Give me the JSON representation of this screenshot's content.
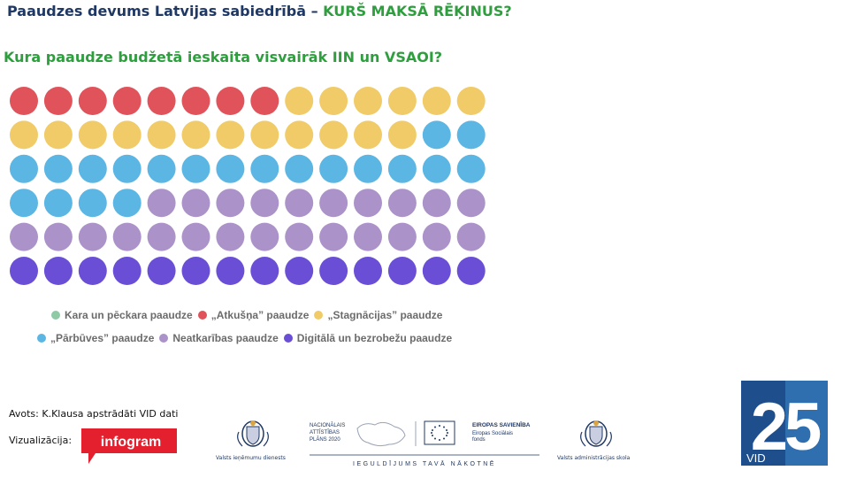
{
  "header": {
    "title_main": "Paaudzes devums Latvijas sabiedrībā – ",
    "title_highlight": "KURŠ MAKSĀ RĒĶINUS?",
    "subtitle": "Kura paaudze budžetā ieskaita visvairāk IIN un VSAOI?"
  },
  "chart_data": {
    "type": "waffle",
    "columns": 14,
    "rows": 6,
    "legend_placement": "bottom",
    "series": [
      {
        "name": "Kara un pēckara paaudze",
        "count": 0,
        "color": "#8fc9a5"
      },
      {
        "name": "„Atkušņa” paaudze",
        "count": 8,
        "color": "#e0535a"
      },
      {
        "name": "„Stagnācijas” paaudze",
        "count": 18,
        "color": "#f0cb67"
      },
      {
        "name": "„Pārbūves” paaudze",
        "count": 20,
        "color": "#5cb6e4"
      },
      {
        "name": "Neatkarības paaudze",
        "count": 24,
        "color": "#ab93c9"
      },
      {
        "name": "Digitālā un bezrobežu paaudze",
        "count": 14,
        "color": "#6a4fd6"
      }
    ]
  },
  "footer": {
    "source": "Avots: K.Klausa apstrādāti VID dati",
    "viz_label": "Vizualizācija:",
    "infogram": "infogram",
    "vid_logo_caption": "Valsts ieņēmumu dienests",
    "nap_line1": "NACIONĀLAIS",
    "nap_line2": "ATTĪSTĪBAS",
    "nap_line3": "PLĀNS 2020",
    "eu_title": "EIROPAS SAVIENĪBA",
    "eu_fund_line1": "Eiropas Sociālais",
    "eu_fund_line2": "fonds",
    "nap_slogan": "IEGULDĪJUMS TAVĀ NĀKOTNĒ",
    "vas_logo_caption": "Valsts administrācijas skola",
    "badge_number": "25",
    "badge_text": "VID"
  }
}
